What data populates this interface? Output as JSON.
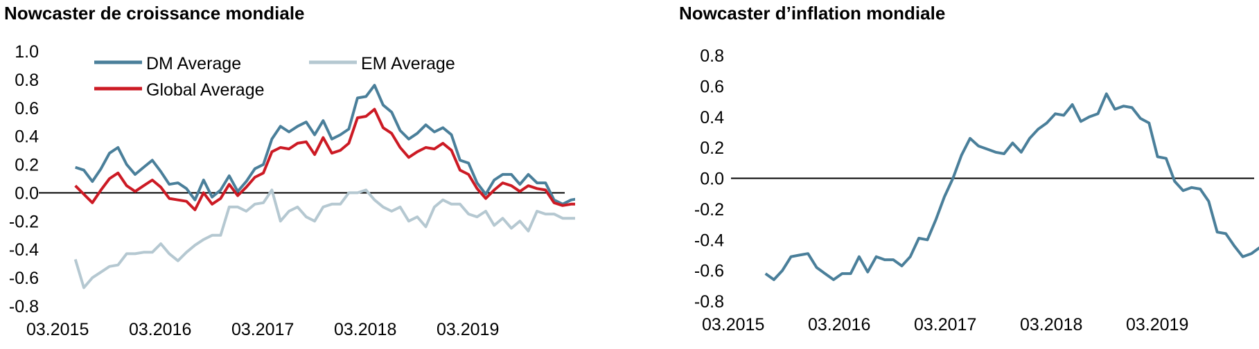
{
  "chart_data": [
    {
      "type": "line",
      "title": "Nowcaster de croissance mondiale",
      "xticks": [
        "03.2015",
        "03.2016",
        "03.2017",
        "03.2018",
        "03.2019"
      ],
      "yticks": [
        "1.0",
        "0.8",
        "0.6",
        "0.4",
        "0.2",
        "0.0",
        "-0.2",
        "-0.4",
        "-0.6",
        "-0.8"
      ],
      "ylim": [
        -0.8,
        1.0
      ],
      "xlim": [
        2015.0,
        2019.917
      ],
      "legend": "top",
      "series": [
        {
          "name": "DM Average",
          "color": "#4a7f9a",
          "x": [
            2015.167,
            2015.25,
            2015.333,
            2015.417,
            2015.5,
            2015.583,
            2015.667,
            2015.75,
            2015.833,
            2015.917,
            2016.0,
            2016.083,
            2016.167,
            2016.25,
            2016.333,
            2016.417,
            2016.5,
            2016.583,
            2016.667,
            2016.75,
            2016.833,
            2016.917,
            2017.0,
            2017.083,
            2017.167,
            2017.25,
            2017.333,
            2017.417,
            2017.5,
            2017.583,
            2017.667,
            2017.75,
            2017.833,
            2017.917,
            2018.0,
            2018.083,
            2018.167,
            2018.25,
            2018.333,
            2018.417,
            2018.5,
            2018.583,
            2018.667,
            2018.75,
            2018.833,
            2018.917,
            2019.0,
            2019.083,
            2019.167,
            2019.25,
            2019.333,
            2019.417,
            2019.5,
            2019.583,
            2019.667,
            2019.75,
            2019.833,
            2019.917,
            2020.0,
            2020.083
          ],
          "values": [
            0.18,
            0.16,
            0.08,
            0.17,
            0.28,
            0.32,
            0.2,
            0.13,
            0.18,
            0.23,
            0.15,
            0.06,
            0.07,
            0.03,
            -0.05,
            0.09,
            -0.03,
            0.02,
            0.12,
            0.01,
            0.08,
            0.17,
            0.2,
            0.38,
            0.47,
            0.43,
            0.47,
            0.5,
            0.41,
            0.51,
            0.38,
            0.41,
            0.45,
            0.67,
            0.68,
            0.76,
            0.62,
            0.57,
            0.44,
            0.38,
            0.42,
            0.48,
            0.43,
            0.46,
            0.41,
            0.23,
            0.21,
            0.07,
            -0.01,
            0.09,
            0.13,
            0.13,
            0.06,
            0.13,
            0.07,
            0.07,
            -0.05,
            -0.08,
            -0.05,
            -0.04
          ]
        },
        {
          "name": "EM Average",
          "color": "#b5c8d1",
          "x": [
            2015.167,
            2015.25,
            2015.333,
            2015.417,
            2015.5,
            2015.583,
            2015.667,
            2015.75,
            2015.833,
            2015.917,
            2016.0,
            2016.083,
            2016.167,
            2016.25,
            2016.333,
            2016.417,
            2016.5,
            2016.583,
            2016.667,
            2016.75,
            2016.833,
            2016.917,
            2017.0,
            2017.083,
            2017.167,
            2017.25,
            2017.333,
            2017.417,
            2017.5,
            2017.583,
            2017.667,
            2017.75,
            2017.833,
            2017.917,
            2018.0,
            2018.083,
            2018.167,
            2018.25,
            2018.333,
            2018.417,
            2018.5,
            2018.583,
            2018.667,
            2018.75,
            2018.833,
            2018.917,
            2019.0,
            2019.083,
            2019.167,
            2019.25,
            2019.333,
            2019.417,
            2019.5,
            2019.583,
            2019.667,
            2019.75,
            2019.833,
            2019.917,
            2020.0,
            2020.083
          ],
          "values": [
            -0.47,
            -0.67,
            -0.6,
            -0.56,
            -0.52,
            -0.51,
            -0.43,
            -0.43,
            -0.42,
            -0.42,
            -0.36,
            -0.43,
            -0.48,
            -0.42,
            -0.37,
            -0.33,
            -0.3,
            -0.3,
            -0.1,
            -0.1,
            -0.13,
            -0.08,
            -0.07,
            0.02,
            -0.2,
            -0.13,
            -0.1,
            -0.17,
            -0.2,
            -0.1,
            -0.08,
            -0.08,
            0.0,
            0.0,
            0.02,
            -0.05,
            -0.1,
            -0.13,
            -0.1,
            -0.2,
            -0.17,
            -0.24,
            -0.1,
            -0.05,
            -0.08,
            -0.08,
            -0.15,
            -0.17,
            -0.13,
            -0.23,
            -0.18,
            -0.25,
            -0.2,
            -0.27,
            -0.13,
            -0.15,
            -0.15,
            -0.18,
            -0.18,
            -0.18
          ]
        },
        {
          "name": "Global Average",
          "color": "#cc1a24",
          "x": [
            2015.167,
            2015.25,
            2015.333,
            2015.417,
            2015.5,
            2015.583,
            2015.667,
            2015.75,
            2015.833,
            2015.917,
            2016.0,
            2016.083,
            2016.167,
            2016.25,
            2016.333,
            2016.417,
            2016.5,
            2016.583,
            2016.667,
            2016.75,
            2016.833,
            2016.917,
            2017.0,
            2017.083,
            2017.167,
            2017.25,
            2017.333,
            2017.417,
            2017.5,
            2017.583,
            2017.667,
            2017.75,
            2017.833,
            2017.917,
            2018.0,
            2018.083,
            2018.167,
            2018.25,
            2018.333,
            2018.417,
            2018.5,
            2018.583,
            2018.667,
            2018.75,
            2018.833,
            2018.917,
            2019.0,
            2019.083,
            2019.167,
            2019.25,
            2019.333,
            2019.417,
            2019.5,
            2019.583,
            2019.667,
            2019.75,
            2019.833,
            2019.917,
            2020.0,
            2020.083
          ],
          "values": [
            0.05,
            -0.01,
            -0.07,
            0.02,
            0.1,
            0.14,
            0.05,
            0.01,
            0.05,
            0.09,
            0.04,
            -0.04,
            -0.05,
            -0.06,
            -0.12,
            0.0,
            -0.08,
            -0.04,
            0.06,
            -0.02,
            0.04,
            0.11,
            0.14,
            0.29,
            0.32,
            0.31,
            0.35,
            0.36,
            0.27,
            0.39,
            0.28,
            0.3,
            0.35,
            0.53,
            0.54,
            0.59,
            0.46,
            0.42,
            0.32,
            0.25,
            0.29,
            0.32,
            0.31,
            0.35,
            0.3,
            0.16,
            0.13,
            0.03,
            -0.04,
            0.02,
            0.07,
            0.05,
            0.01,
            0.05,
            0.03,
            0.02,
            -0.07,
            -0.09,
            -0.08,
            -0.08
          ]
        }
      ]
    },
    {
      "type": "line",
      "title": "Nowcaster d’inflation mondiale",
      "xticks": [
        "03.2015",
        "03.2016",
        "03.2017",
        "03.2018",
        "03.2019"
      ],
      "yticks": [
        "0.8",
        "0.6",
        "0.4",
        "0.2",
        "0.0",
        "-0.2",
        "-0.4",
        "-0.6",
        "-0.8"
      ],
      "ylim": [
        -0.8,
        0.8
      ],
      "xlim": [
        2015.0,
        2019.917
      ],
      "series": [
        {
          "color": "#4a7f9a",
          "x": [
            2015.167,
            2015.25,
            2015.333,
            2015.417,
            2015.5,
            2015.583,
            2015.667,
            2015.75,
            2015.833,
            2015.917,
            2016.0,
            2016.083,
            2016.167,
            2016.25,
            2016.333,
            2016.417,
            2016.5,
            2016.583,
            2016.667,
            2016.75,
            2016.833,
            2016.917,
            2017.0,
            2017.083,
            2017.167,
            2017.25,
            2017.333,
            2017.417,
            2017.5,
            2017.583,
            2017.667,
            2017.75,
            2017.833,
            2017.917,
            2018.0,
            2018.083,
            2018.167,
            2018.25,
            2018.333,
            2018.417,
            2018.5,
            2018.583,
            2018.667,
            2018.75,
            2018.833,
            2018.917,
            2019.0,
            2019.083,
            2019.167,
            2019.25,
            2019.333,
            2019.417,
            2019.5,
            2019.583,
            2019.667,
            2019.75,
            2019.833,
            2019.917,
            2020.0,
            2020.083
          ],
          "values": [
            -0.62,
            -0.66,
            -0.6,
            -0.51,
            -0.5,
            -0.49,
            -0.58,
            -0.62,
            -0.66,
            -0.62,
            -0.62,
            -0.51,
            -0.61,
            -0.51,
            -0.53,
            -0.53,
            -0.57,
            -0.51,
            -0.39,
            -0.4,
            -0.27,
            -0.12,
            0.0,
            0.15,
            0.26,
            0.21,
            0.19,
            0.17,
            0.16,
            0.23,
            0.17,
            0.26,
            0.32,
            0.36,
            0.42,
            0.41,
            0.48,
            0.37,
            0.4,
            0.42,
            0.55,
            0.45,
            0.47,
            0.46,
            0.39,
            0.36,
            0.14,
            0.13,
            -0.02,
            -0.08,
            -0.06,
            -0.07,
            -0.15,
            -0.35,
            -0.36,
            -0.44,
            -0.51,
            -0.49,
            -0.45,
            -0.45
          ]
        }
      ]
    }
  ]
}
